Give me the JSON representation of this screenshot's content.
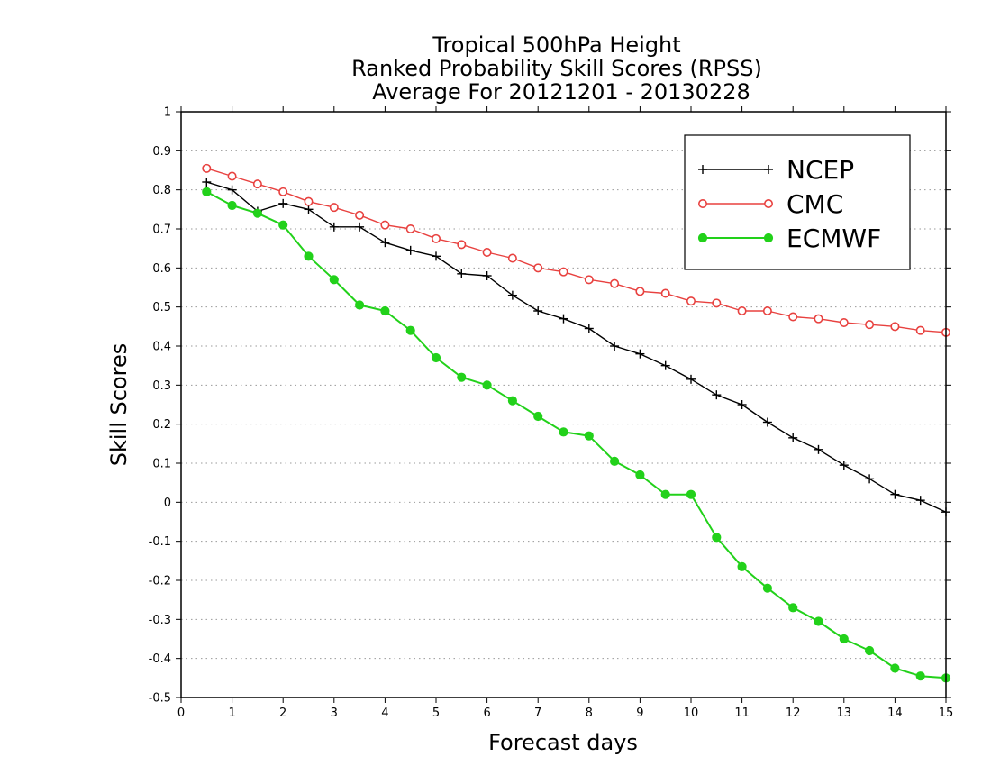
{
  "chart_data": {
    "type": "line",
    "title": [
      "Tropical 500hPa Height",
      "Ranked Probability Skill Scores (RPSS)",
      "Average For 20121201 - 20130228"
    ],
    "xlabel": "Forecast days",
    "ylabel": "Skill Scores",
    "xlim": [
      0,
      15
    ],
    "ylim": [
      -0.5,
      1
    ],
    "x_ticks": [
      "0",
      "1",
      "2",
      "3",
      "4",
      "5",
      "6",
      "7",
      "8",
      "9",
      "10",
      "11",
      "12",
      "13",
      "14",
      "15"
    ],
    "y_ticks": [
      "-0.5",
      "-0.4",
      "-0.3",
      "-0.2",
      "-0.1",
      "0",
      "0.1",
      "0.2",
      "0.3",
      "0.4",
      "0.5",
      "0.6",
      "0.7",
      "0.8",
      "0.9",
      "1"
    ],
    "grid": "horizontal dotted",
    "legend_position": "top-right",
    "x": [
      0.5,
      1,
      1.5,
      2,
      2.5,
      3,
      3.5,
      4,
      4.5,
      5,
      5.5,
      6,
      6.5,
      7,
      7.5,
      8,
      8.5,
      9,
      9.5,
      10,
      10.5,
      11,
      11.5,
      12,
      12.5,
      13,
      13.5,
      14,
      14.5,
      15
    ],
    "series": [
      {
        "name": "NCEP",
        "color": "#000000",
        "marker": "plus",
        "values": [
          0.82,
          0.8,
          0.745,
          0.765,
          0.75,
          0.705,
          0.705,
          0.665,
          0.645,
          0.63,
          0.585,
          0.58,
          0.53,
          0.49,
          0.47,
          0.445,
          0.4,
          0.38,
          0.35,
          0.315,
          0.275,
          0.25,
          0.205,
          0.165,
          0.135,
          0.095,
          0.06,
          0.02,
          0.005,
          -0.025
        ]
      },
      {
        "name": "CMC",
        "color": "#e8413f",
        "marker": "open-circle",
        "values": [
          0.855,
          0.835,
          0.815,
          0.795,
          0.77,
          0.755,
          0.735,
          0.71,
          0.7,
          0.675,
          0.66,
          0.64,
          0.625,
          0.6,
          0.59,
          0.57,
          0.56,
          0.54,
          0.535,
          0.515,
          0.51,
          0.49,
          0.49,
          0.475,
          0.47,
          0.46,
          0.455,
          0.45,
          0.44,
          0.435
        ]
      },
      {
        "name": "ECMWF",
        "color": "#22d11a",
        "marker": "filled-circle",
        "values": [
          0.795,
          0.76,
          0.74,
          0.71,
          0.63,
          0.57,
          0.505,
          0.49,
          0.44,
          0.37,
          0.32,
          0.3,
          0.26,
          0.22,
          0.18,
          0.17,
          0.105,
          0.07,
          0.02,
          0.02,
          -0.09,
          -0.165,
          -0.22,
          -0.27,
          -0.305,
          -0.35,
          -0.38,
          -0.425,
          -0.445,
          -0.45
        ]
      }
    ]
  }
}
